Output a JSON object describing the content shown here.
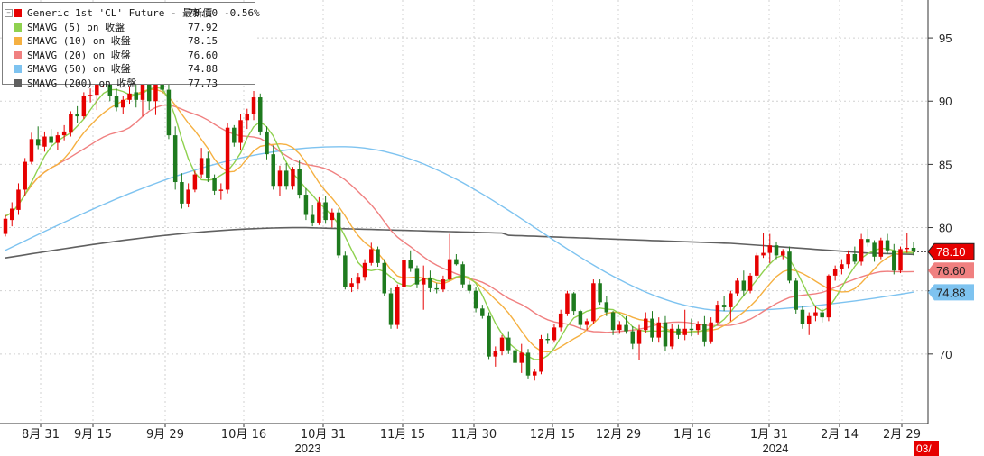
{
  "chart_data": {
    "type": "candlestick",
    "title": "",
    "y_axis": {
      "position": "right",
      "ylim": [
        64.5,
        98
      ],
      "ticks": [
        70,
        75,
        80,
        85,
        90,
        95
      ]
    },
    "x_axis": {
      "tick_labels": [
        "8月 31",
        "9月 15",
        "9月 29",
        "10月 16",
        "10月 31",
        "11月 15",
        "11月 30",
        "12月 15",
        "12月 29",
        "1月 16",
        "1月 31",
        "2月 14",
        "2月 29"
      ],
      "year_labels": [
        "2023",
        "2024"
      ],
      "edge_label": "03/"
    },
    "legend": {
      "placement": "top-left",
      "entries": [
        {
          "name": "Generic 1st 'CL' Future - 最新價",
          "value": "78.10",
          "change": "-0.56%",
          "color": "#e60000"
        },
        {
          "name": "SMAVG (5)  on 收盤",
          "value": "77.92",
          "color": "#8fd14f"
        },
        {
          "name": "SMAVG (10)  on 收盤",
          "value": "78.15",
          "color": "#f5b041"
        },
        {
          "name": "SMAVG (20)  on 收盤",
          "value": "76.60",
          "color": "#f08080"
        },
        {
          "name": "SMAVG (50)  on 收盤",
          "value": "74.88",
          "color": "#7ec3f0"
        },
        {
          "name": "SMAVG (200)  on 收盤",
          "value": "77.73",
          "color": "#606060"
        }
      ]
    },
    "last_value_labels": [
      {
        "value": "78.10",
        "color": "#e60000"
      },
      {
        "value": "76.60",
        "color": "#f08080"
      },
      {
        "value": "74.88",
        "color": "#7ec3f0"
      }
    ],
    "colors": {
      "up": "#e60000",
      "down": "#1e7a1e",
      "grid": "#d0d0d0"
    },
    "candles": [
      [
        79.5,
        81.0,
        79.3,
        80.7
      ],
      [
        80.6,
        82.0,
        80.1,
        81.5
      ],
      [
        81.4,
        83.5,
        81.0,
        83.0
      ],
      [
        83.0,
        85.5,
        82.5,
        85.2
      ],
      [
        85.2,
        87.5,
        85.0,
        87.0
      ],
      [
        87.0,
        88.0,
        86.2,
        86.5
      ],
      [
        86.4,
        87.6,
        86.0,
        87.2
      ],
      [
        87.2,
        87.8,
        86.4,
        86.7
      ],
      [
        86.7,
        87.6,
        86.1,
        87.3
      ],
      [
        87.3,
        88.1,
        86.9,
        87.6
      ],
      [
        87.5,
        89.2,
        87.2,
        89.0
      ],
      [
        89.0,
        89.6,
        88.3,
        88.8
      ],
      [
        88.8,
        90.7,
        88.6,
        90.4
      ],
      [
        90.4,
        91.0,
        89.9,
        90.5
      ],
      [
        90.5,
        92.0,
        89.3,
        91.6
      ],
      [
        91.6,
        93.4,
        91.1,
        92.4
      ],
      [
        92.4,
        93.0,
        90.0,
        90.4
      ],
      [
        90.4,
        91.0,
        89.2,
        89.5
      ],
      [
        89.5,
        90.4,
        89.0,
        90.1
      ],
      [
        90.1,
        91.2,
        89.8,
        90.6
      ],
      [
        90.7,
        95.0,
        89.5,
        90.1
      ],
      [
        90.1,
        94.0,
        88.8,
        93.7
      ],
      [
        93.7,
        94.5,
        89.3,
        90.0
      ],
      [
        90.0,
        92.4,
        88.9,
        91.3
      ],
      [
        91.3,
        92.0,
        90.6,
        90.9
      ],
      [
        90.9,
        91.3,
        87.0,
        87.3
      ],
      [
        87.3,
        88.0,
        83.0,
        83.6
      ],
      [
        83.6,
        84.3,
        81.5,
        81.9
      ],
      [
        81.9,
        83.5,
        81.6,
        83.0
      ],
      [
        83.0,
        84.5,
        82.8,
        84.2
      ],
      [
        84.2,
        86.3,
        83.9,
        85.5
      ],
      [
        85.5,
        86.0,
        83.6,
        83.9
      ],
      [
        83.9,
        84.2,
        82.6,
        82.9
      ],
      [
        82.9,
        83.5,
        82.2,
        83.0
      ],
      [
        83.0,
        88.3,
        82.7,
        87.9
      ],
      [
        87.9,
        88.1,
        86.4,
        86.7
      ],
      [
        86.7,
        89.0,
        86.1,
        88.5
      ],
      [
        88.5,
        89.4,
        87.8,
        89.0
      ],
      [
        89.0,
        90.8,
        88.5,
        90.3
      ],
      [
        90.3,
        90.6,
        87.3,
        87.6
      ],
      [
        87.6,
        88.0,
        85.4,
        85.8
      ],
      [
        85.8,
        86.5,
        83.0,
        83.3
      ],
      [
        83.3,
        84.9,
        82.5,
        84.5
      ],
      [
        84.5,
        85.1,
        83.0,
        83.3
      ],
      [
        83.3,
        84.8,
        83.0,
        84.6
      ],
      [
        84.6,
        85.3,
        82.3,
        82.6
      ],
      [
        82.6,
        83.1,
        80.6,
        81.0
      ],
      [
        81.0,
        81.8,
        80.1,
        80.4
      ],
      [
        80.4,
        82.4,
        80.2,
        82.0
      ],
      [
        82.0,
        82.5,
        80.3,
        80.6
      ],
      [
        80.6,
        81.5,
        80.0,
        81.2
      ],
      [
        81.2,
        81.5,
        77.6,
        77.8
      ],
      [
        77.8,
        78.1,
        75.1,
        75.3
      ],
      [
        75.3,
        76.0,
        74.9,
        75.6
      ],
      [
        75.6,
        76.4,
        75.1,
        76.1
      ],
      [
        76.1,
        77.5,
        75.8,
        77.2
      ],
      [
        77.2,
        78.8,
        77.0,
        78.3
      ],
      [
        78.3,
        78.5,
        76.9,
        77.2
      ],
      [
        77.2,
        77.5,
        74.6,
        74.8
      ],
      [
        74.8,
        75.2,
        72.0,
        72.3
      ],
      [
        72.3,
        75.5,
        72.0,
        75.3
      ],
      [
        75.3,
        77.6,
        75.0,
        77.4
      ],
      [
        77.4,
        78.2,
        76.5,
        76.8
      ],
      [
        76.8,
        77.0,
        75.2,
        75.5
      ],
      [
        75.5,
        77.0,
        73.5,
        76.0
      ],
      [
        76.0,
        76.6,
        74.9,
        75.2
      ],
      [
        75.2,
        75.6,
        74.8,
        75.1
      ],
      [
        75.1,
        76.2,
        74.9,
        75.9
      ],
      [
        75.9,
        79.5,
        75.8,
        77.5
      ],
      [
        77.5,
        77.9,
        77.0,
        77.1
      ],
      [
        77.1,
        77.3,
        75.2,
        75.5
      ],
      [
        75.5,
        75.8,
        74.8,
        75.0
      ],
      [
        75.0,
        75.3,
        73.3,
        73.6
      ],
      [
        73.6,
        73.9,
        72.8,
        73.0
      ],
      [
        73.0,
        73.3,
        69.6,
        69.8
      ],
      [
        69.8,
        70.6,
        69.0,
        70.2
      ],
      [
        70.2,
        71.5,
        69.9,
        71.3
      ],
      [
        71.3,
        71.8,
        70.0,
        70.3
      ],
      [
        70.3,
        70.7,
        69.0,
        69.3
      ],
      [
        69.3,
        70.8,
        68.5,
        70.1
      ],
      [
        70.1,
        70.4,
        68.0,
        68.3
      ],
      [
        68.3,
        68.8,
        67.9,
        68.6
      ],
      [
        68.6,
        71.5,
        68.4,
        71.2
      ],
      [
        71.2,
        71.6,
        70.8,
        71.1
      ],
      [
        71.1,
        72.4,
        70.9,
        72.1
      ],
      [
        72.1,
        73.5,
        71.8,
        73.2
      ],
      [
        73.2,
        75.0,
        73.0,
        74.8
      ],
      [
        74.8,
        74.9,
        73.1,
        73.4
      ],
      [
        73.4,
        73.5,
        72.0,
        72.3
      ],
      [
        72.3,
        72.8,
        71.9,
        72.6
      ],
      [
        72.6,
        75.9,
        72.4,
        75.6
      ],
      [
        75.6,
        75.9,
        73.9,
        74.1
      ],
      [
        74.1,
        74.6,
        73.0,
        73.3
      ],
      [
        73.3,
        73.4,
        71.5,
        71.9
      ],
      [
        71.9,
        72.6,
        71.6,
        72.3
      ],
      [
        72.3,
        73.0,
        71.6,
        71.8
      ],
      [
        71.8,
        72.2,
        70.4,
        70.8
      ],
      [
        70.8,
        72.3,
        69.5,
        71.9
      ],
      [
        71.9,
        73.3,
        71.7,
        72.8
      ],
      [
        72.8,
        73.4,
        71.0,
        71.3
      ],
      [
        71.3,
        72.9,
        70.9,
        72.5
      ],
      [
        72.5,
        73.0,
        70.2,
        70.6
      ],
      [
        70.6,
        72.4,
        70.4,
        72.0
      ],
      [
        72.0,
        72.3,
        71.2,
        71.5
      ],
      [
        71.5,
        73.5,
        71.1,
        72.0
      ],
      [
        72.0,
        72.8,
        71.4,
        71.9
      ],
      [
        71.9,
        72.6,
        71.5,
        72.4
      ],
      [
        72.4,
        73.0,
        70.6,
        71.0
      ],
      [
        71.0,
        72.9,
        70.8,
        72.5
      ],
      [
        72.5,
        74.2,
        72.3,
        73.9
      ],
      [
        73.9,
        74.6,
        73.4,
        73.7
      ],
      [
        73.7,
        75.0,
        72.6,
        74.8
      ],
      [
        74.8,
        76.0,
        74.6,
        75.8
      ],
      [
        75.8,
        76.6,
        74.6,
        75.0
      ],
      [
        75.0,
        76.4,
        74.8,
        76.2
      ],
      [
        76.2,
        78.0,
        76.0,
        77.8
      ],
      [
        77.8,
        79.6,
        77.6,
        78.0
      ],
      [
        78.0,
        79.5,
        77.2,
        78.6
      ],
      [
        78.6,
        78.9,
        77.5,
        77.8
      ],
      [
        77.8,
        78.3,
        77.5,
        78.1
      ],
      [
        78.1,
        78.5,
        75.6,
        75.8
      ],
      [
        75.8,
        76.0,
        73.2,
        73.5
      ],
      [
        73.5,
        73.8,
        72.0,
        72.4
      ],
      [
        72.4,
        73.3,
        71.5,
        73.0
      ],
      [
        73.0,
        73.8,
        72.6,
        73.3
      ],
      [
        73.3,
        73.6,
        72.5,
        72.9
      ],
      [
        72.9,
        76.3,
        72.6,
        76.2
      ],
      [
        76.2,
        77.0,
        75.8,
        76.7
      ],
      [
        76.7,
        77.5,
        76.3,
        77.1
      ],
      [
        77.1,
        78.2,
        76.8,
        77.9
      ],
      [
        77.9,
        78.5,
        77.1,
        77.3
      ],
      [
        77.3,
        79.5,
        77.0,
        79.1
      ],
      [
        79.1,
        79.9,
        78.5,
        78.8
      ],
      [
        78.8,
        79.0,
        77.3,
        77.7
      ],
      [
        77.7,
        79.2,
        77.5,
        79.0
      ],
      [
        79.0,
        79.5,
        77.9,
        78.2
      ],
      [
        78.2,
        78.7,
        76.3,
        76.6
      ],
      [
        76.6,
        78.5,
        76.4,
        78.3
      ],
      [
        78.3,
        79.6,
        78.0,
        78.4
      ],
      [
        78.4,
        78.9,
        77.8,
        78.1
      ]
    ]
  }
}
